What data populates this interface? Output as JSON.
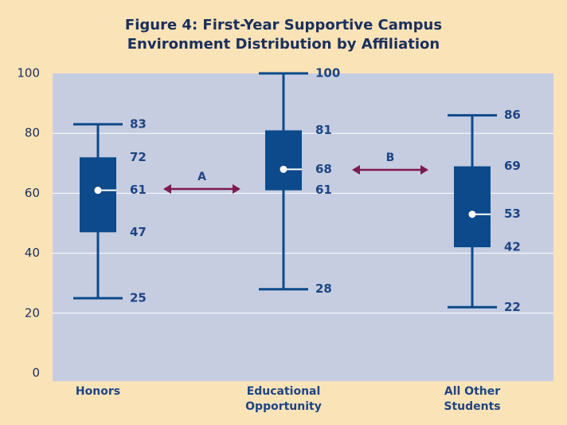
{
  "chart_data": {
    "type": "box",
    "title": "Figure 4: First-Year Supportive Campus Environment Distribution by Affiliation",
    "categories": [
      "Honors",
      "Educational Opportunity",
      "All Other Students"
    ],
    "values": [
      {
        "min": 25,
        "q1": 47,
        "median": 61,
        "q3": 72,
        "max": 83
      },
      {
        "min": 28,
        "q1": 61,
        "median": 68,
        "q3": 81,
        "max": 100
      },
      {
        "min": 22,
        "q1": 42,
        "median": 53,
        "q3": 69,
        "max": 86
      }
    ],
    "color": "#0c4a8b",
    "annotations": [
      "A",
      "B"
    ],
    "annotation_color": "#7d1a4f",
    "ylim": [
      0,
      100
    ],
    "yticks": [
      0,
      20,
      40,
      60,
      80,
      100
    ],
    "grid": true
  }
}
